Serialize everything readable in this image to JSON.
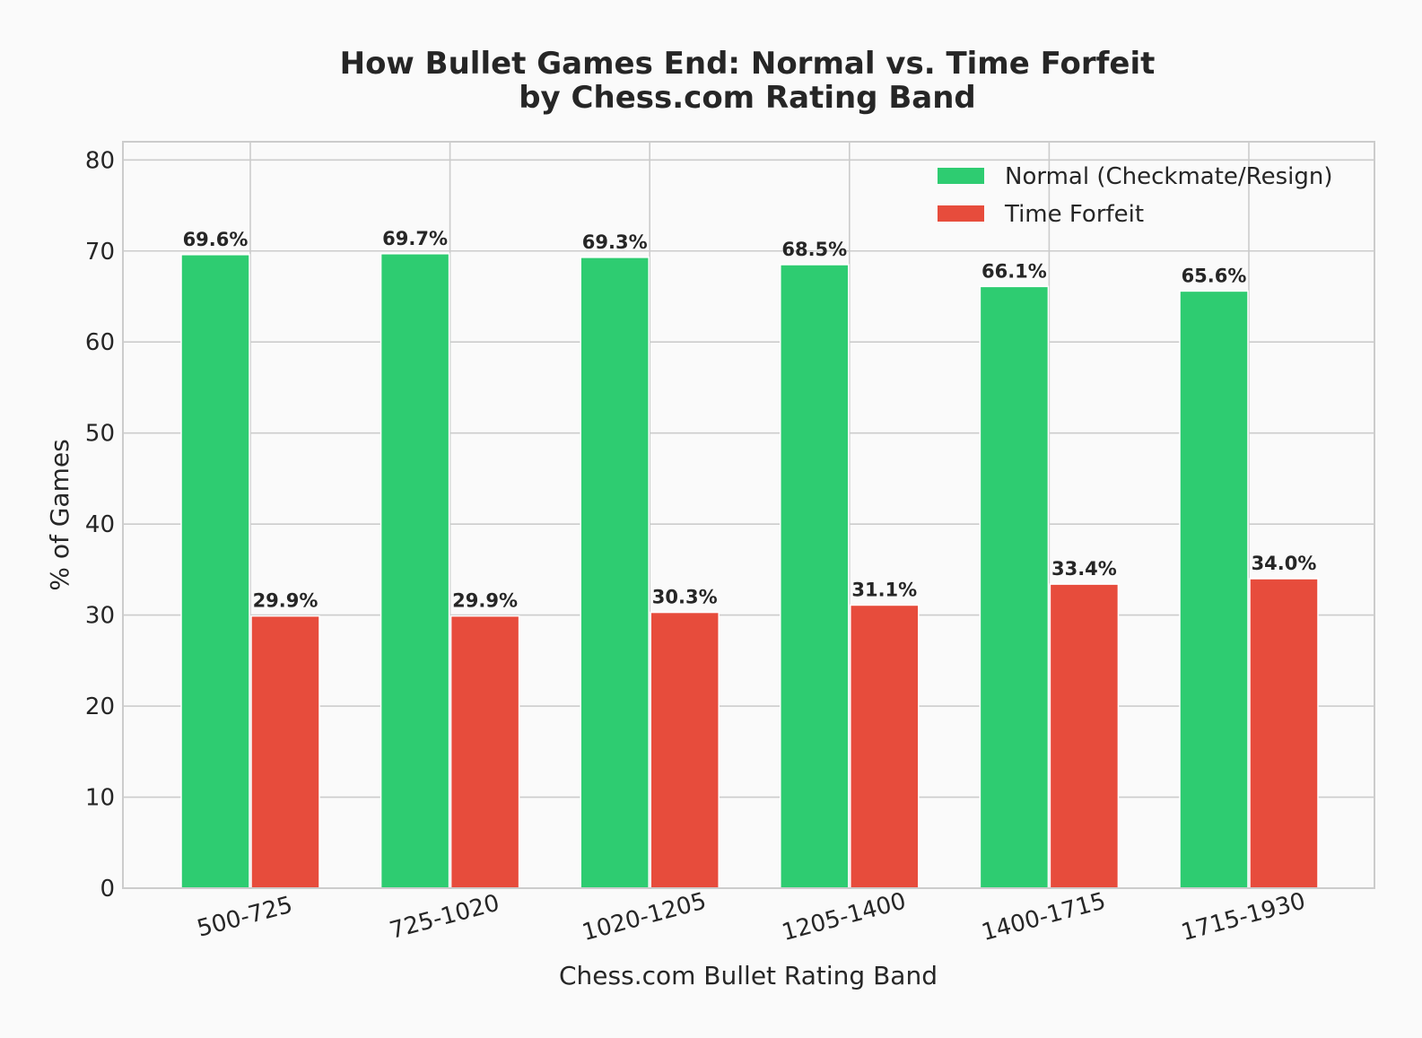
{
  "chart_data": {
    "type": "bar",
    "title_lines": [
      "How Bullet Games End: Normal vs. Time Forfeit",
      "by Chess.com Rating Band"
    ],
    "xlabel": "Chess.com Bullet Rating Band",
    "ylabel": "% of Games",
    "categories": [
      "500-725",
      "725-1020",
      "1020-1205",
      "1205-1400",
      "1400-1715",
      "1715-1930"
    ],
    "series": [
      {
        "name": "Normal (Checkmate/Resign)",
        "color": "#2ecc71",
        "values": [
          69.6,
          69.7,
          69.3,
          68.5,
          66.1,
          65.6
        ],
        "labels": [
          "69.6%",
          "69.7%",
          "69.3%",
          "68.5%",
          "66.1%",
          "65.6%"
        ]
      },
      {
        "name": "Time Forfeit",
        "color": "#e74c3c",
        "values": [
          29.9,
          29.9,
          30.3,
          31.1,
          33.4,
          34.0
        ],
        "labels": [
          "29.9%",
          "29.9%",
          "30.3%",
          "31.1%",
          "33.4%",
          "34.0%"
        ]
      }
    ],
    "ylim": [
      0,
      82
    ],
    "yticks": [
      0,
      10,
      20,
      30,
      40,
      50,
      60,
      70,
      80
    ],
    "grid": true,
    "legend_position": "top-right"
  }
}
